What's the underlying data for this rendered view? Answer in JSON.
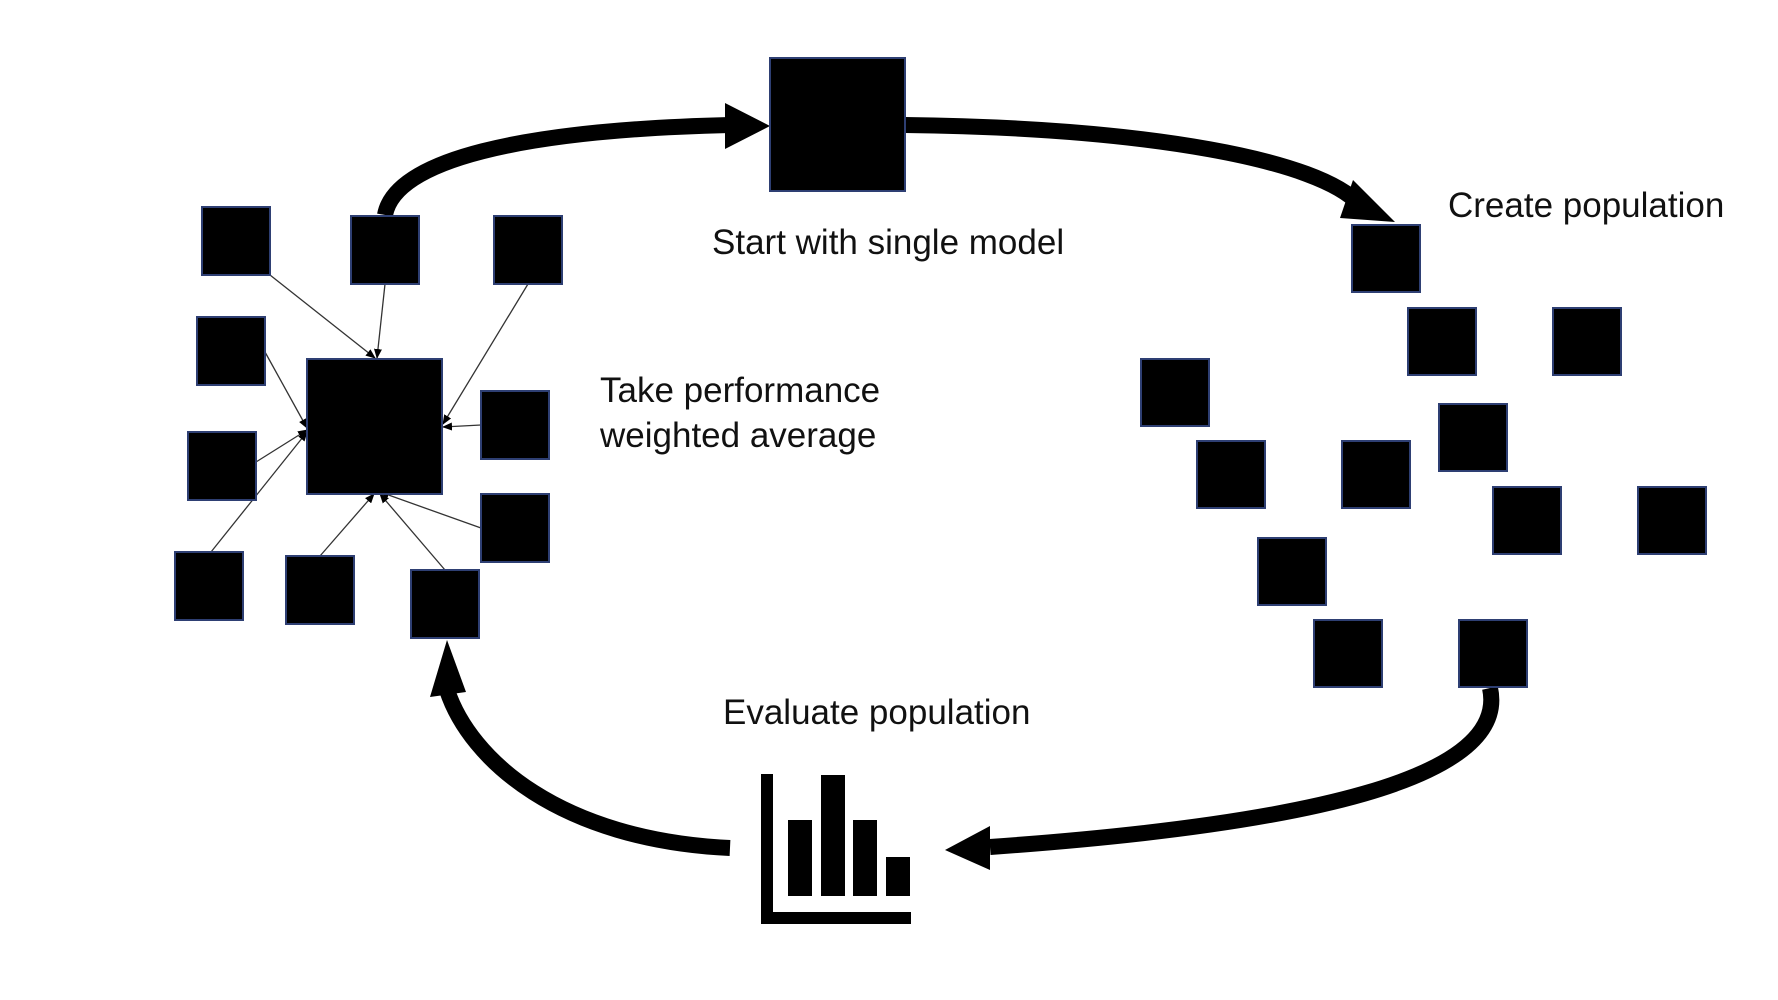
{
  "labels": {
    "start": "Start with single model",
    "create": "Create population",
    "evaluate": "Evaluate population",
    "average_line1": "Take performance",
    "average_line2": "weighted average"
  },
  "icons": {
    "chart": "bar-chart-icon",
    "model": "square-model-icon"
  },
  "colors": {
    "fill": "#000000",
    "outline": "#2e3f73",
    "text": "#111111"
  }
}
